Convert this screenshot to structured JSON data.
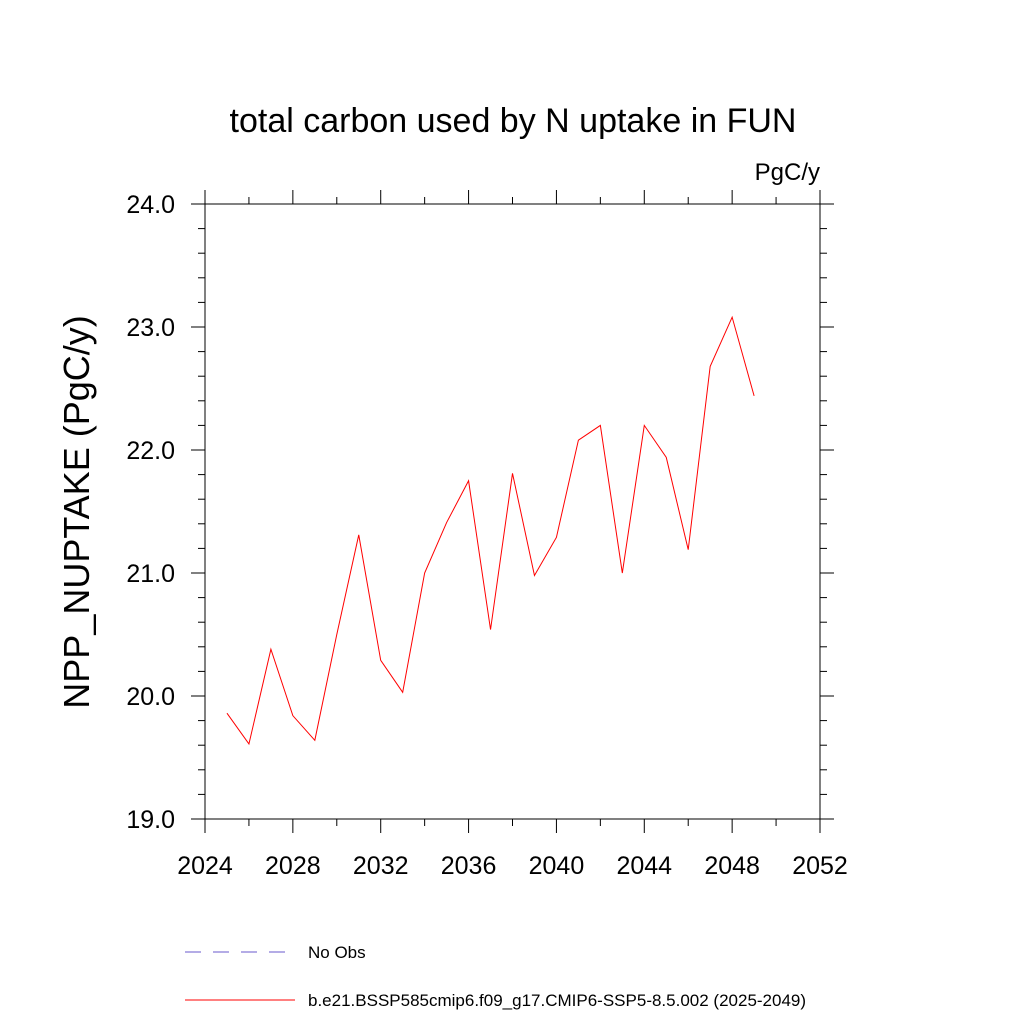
{
  "chart_data": {
    "type": "line",
    "title": "total carbon used by N uptake in FUN",
    "units_label": "PgC/y",
    "ylabel": "NPP_NUPTAKE  (PgC/y)",
    "xlabel": "",
    "xlim": [
      2024,
      2052
    ],
    "ylim": [
      19.0,
      24.0
    ],
    "x_ticks": [
      2024,
      2028,
      2032,
      2036,
      2040,
      2044,
      2048,
      2052
    ],
    "x_tick_labels": [
      "2024",
      "2028",
      "2032",
      "2036",
      "2040",
      "2044",
      "2048",
      "2052"
    ],
    "y_ticks": [
      19.0,
      20.0,
      21.0,
      22.0,
      23.0,
      24.0
    ],
    "y_tick_labels": [
      "19.0",
      "20.0",
      "21.0",
      "22.0",
      "23.0",
      "24.0"
    ],
    "grid": false,
    "legend_position": "bottom",
    "series": [
      {
        "name": "No Obs",
        "color": "#6a5acd",
        "dash": true,
        "x": [],
        "values": []
      },
      {
        "name": "b.e21.BSSP585cmip6.f09_g17.CMIP6-SSP5-8.5.002 (2025-2049)",
        "color": "#ff0000",
        "dash": false,
        "x": [
          2025,
          2026,
          2027,
          2028,
          2029,
          2030,
          2031,
          2032,
          2033,
          2034,
          2035,
          2036,
          2037,
          2038,
          2039,
          2040,
          2041,
          2042,
          2043,
          2044,
          2045,
          2046,
          2047,
          2048,
          2049
        ],
        "values": [
          19.86,
          19.61,
          20.38,
          19.84,
          19.64,
          20.5,
          21.31,
          20.29,
          20.03,
          21.0,
          21.41,
          21.75,
          20.54,
          21.81,
          20.98,
          21.29,
          22.08,
          22.2,
          21.0,
          22.2,
          21.94,
          21.19,
          22.68,
          23.08,
          22.44
        ]
      }
    ]
  }
}
